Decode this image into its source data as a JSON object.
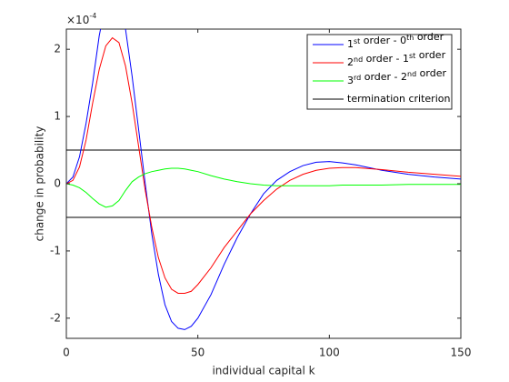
{
  "chart_data": {
    "type": "line",
    "xlabel": "individual capital k",
    "ylabel": "change in probability",
    "y_multiplier": {
      "base": "×10",
      "exponent": "-4"
    },
    "x": [
      0,
      2.5,
      5,
      7.5,
      10,
      12.5,
      15,
      17.5,
      20,
      22.5,
      25,
      27.5,
      30,
      32.5,
      35,
      37.5,
      40,
      42.5,
      45,
      47.5,
      50,
      55,
      60,
      65,
      70,
      75,
      80,
      85,
      90,
      95,
      100,
      105,
      110,
      120,
      130,
      140,
      150
    ],
    "series": [
      {
        "name": "1st order - 0th order",
        "color": "#0000ff",
        "values": [
          0,
          0.1,
          0.4,
          0.9,
          1.5,
          2.2,
          2.7,
          2.9,
          2.8,
          2.3,
          1.6,
          0.8,
          0.0,
          -0.75,
          -1.35,
          -1.8,
          -2.05,
          -2.15,
          -2.17,
          -2.12,
          -2.0,
          -1.65,
          -1.2,
          -0.8,
          -0.45,
          -0.15,
          0.05,
          0.18,
          0.27,
          0.32,
          0.33,
          0.31,
          0.28,
          0.2,
          0.14,
          0.1,
          0.07
        ]
      },
      {
        "name": "2nd order - 1st order",
        "color": "#ff0000",
        "values": [
          0,
          0.05,
          0.25,
          0.65,
          1.2,
          1.7,
          2.05,
          2.17,
          2.1,
          1.75,
          1.2,
          0.55,
          -0.1,
          -0.65,
          -1.1,
          -1.4,
          -1.57,
          -1.63,
          -1.63,
          -1.6,
          -1.5,
          -1.25,
          -0.95,
          -0.7,
          -0.45,
          -0.25,
          -0.08,
          0.05,
          0.14,
          0.2,
          0.23,
          0.24,
          0.24,
          0.21,
          0.17,
          0.14,
          0.11
        ]
      },
      {
        "name": "3rd order - 2nd order",
        "color": "#00ff00",
        "values": [
          0,
          -0.02,
          -0.06,
          -0.13,
          -0.22,
          -0.3,
          -0.35,
          -0.33,
          -0.25,
          -0.1,
          0.03,
          0.1,
          0.15,
          0.18,
          0.2,
          0.22,
          0.23,
          0.23,
          0.22,
          0.2,
          0.18,
          0.12,
          0.07,
          0.03,
          0.0,
          -0.02,
          -0.03,
          -0.03,
          -0.03,
          -0.03,
          -0.03,
          -0.02,
          -0.02,
          -0.02,
          -0.01,
          -0.01,
          -0.01
        ]
      }
    ],
    "criterion": {
      "name": "termination criterion",
      "color": "#000000",
      "x": [
        0,
        150
      ],
      "values": [
        0.5,
        0.5
      ],
      "values_lower": [
        -0.5,
        -0.5
      ]
    },
    "xlim": [
      0,
      150
    ],
    "xticks": [
      0,
      50,
      100,
      150
    ],
    "ylim": [
      -2.3,
      2.3
    ],
    "yticks": [
      -2,
      -1,
      0,
      1,
      2
    ],
    "legend": "upper right"
  }
}
